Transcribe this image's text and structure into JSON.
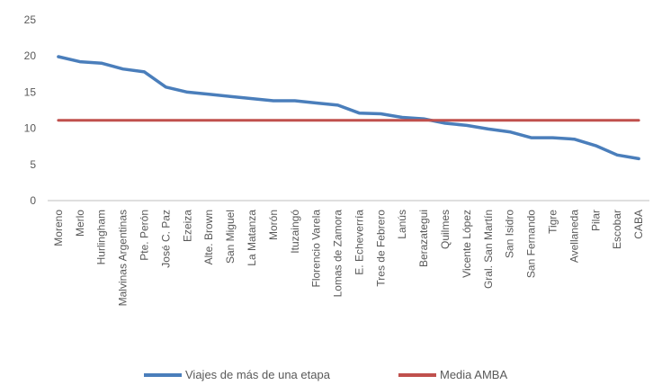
{
  "chart_data": {
    "type": "line",
    "categories": [
      "Moreno",
      "Merlo",
      "Hurlingham",
      "Malvinas Argentinas",
      "Pte. Perón",
      "José C. Paz",
      "Ezeiza",
      "Alte. Brown",
      "San Miguel",
      "La Matanza",
      "Morón",
      "Ituzaingó",
      "Florencio Varela",
      "Lomas de Zamora",
      "E. Echeverría",
      "Tres de Febrero",
      "Lanús",
      "Berazategui",
      "Quilmes",
      "Vicente López",
      "Gral. San Martín",
      "San Isidro",
      "San Fernando",
      "Tigre",
      "Avellaneda",
      "Pilar",
      "Escobar",
      "CABA"
    ],
    "series": [
      {
        "name": "Viajes de más de una etapa",
        "color": "#4a7ebb",
        "values": [
          19.9,
          19.2,
          19.0,
          18.2,
          17.8,
          15.7,
          15.0,
          14.7,
          14.4,
          14.1,
          13.8,
          13.8,
          13.5,
          13.2,
          12.1,
          12.0,
          11.5,
          11.3,
          10.7,
          10.4,
          9.9,
          9.5,
          8.7,
          8.7,
          8.5,
          7.6,
          6.3,
          5.8
        ]
      },
      {
        "name": "Media AMBA",
        "color": "#c0504d",
        "values": [
          11.1,
          11.1,
          11.1,
          11.1,
          11.1,
          11.1,
          11.1,
          11.1,
          11.1,
          11.1,
          11.1,
          11.1,
          11.1,
          11.1,
          11.1,
          11.1,
          11.1,
          11.1,
          11.1,
          11.1,
          11.1,
          11.1,
          11.1,
          11.1,
          11.1,
          11.1,
          11.1,
          11.1
        ]
      }
    ],
    "yticks": [
      "0",
      "5",
      "10",
      "15",
      "20",
      "25"
    ],
    "ylim": [
      0,
      25
    ],
    "grid": false,
    "legend_position": "bottom"
  }
}
